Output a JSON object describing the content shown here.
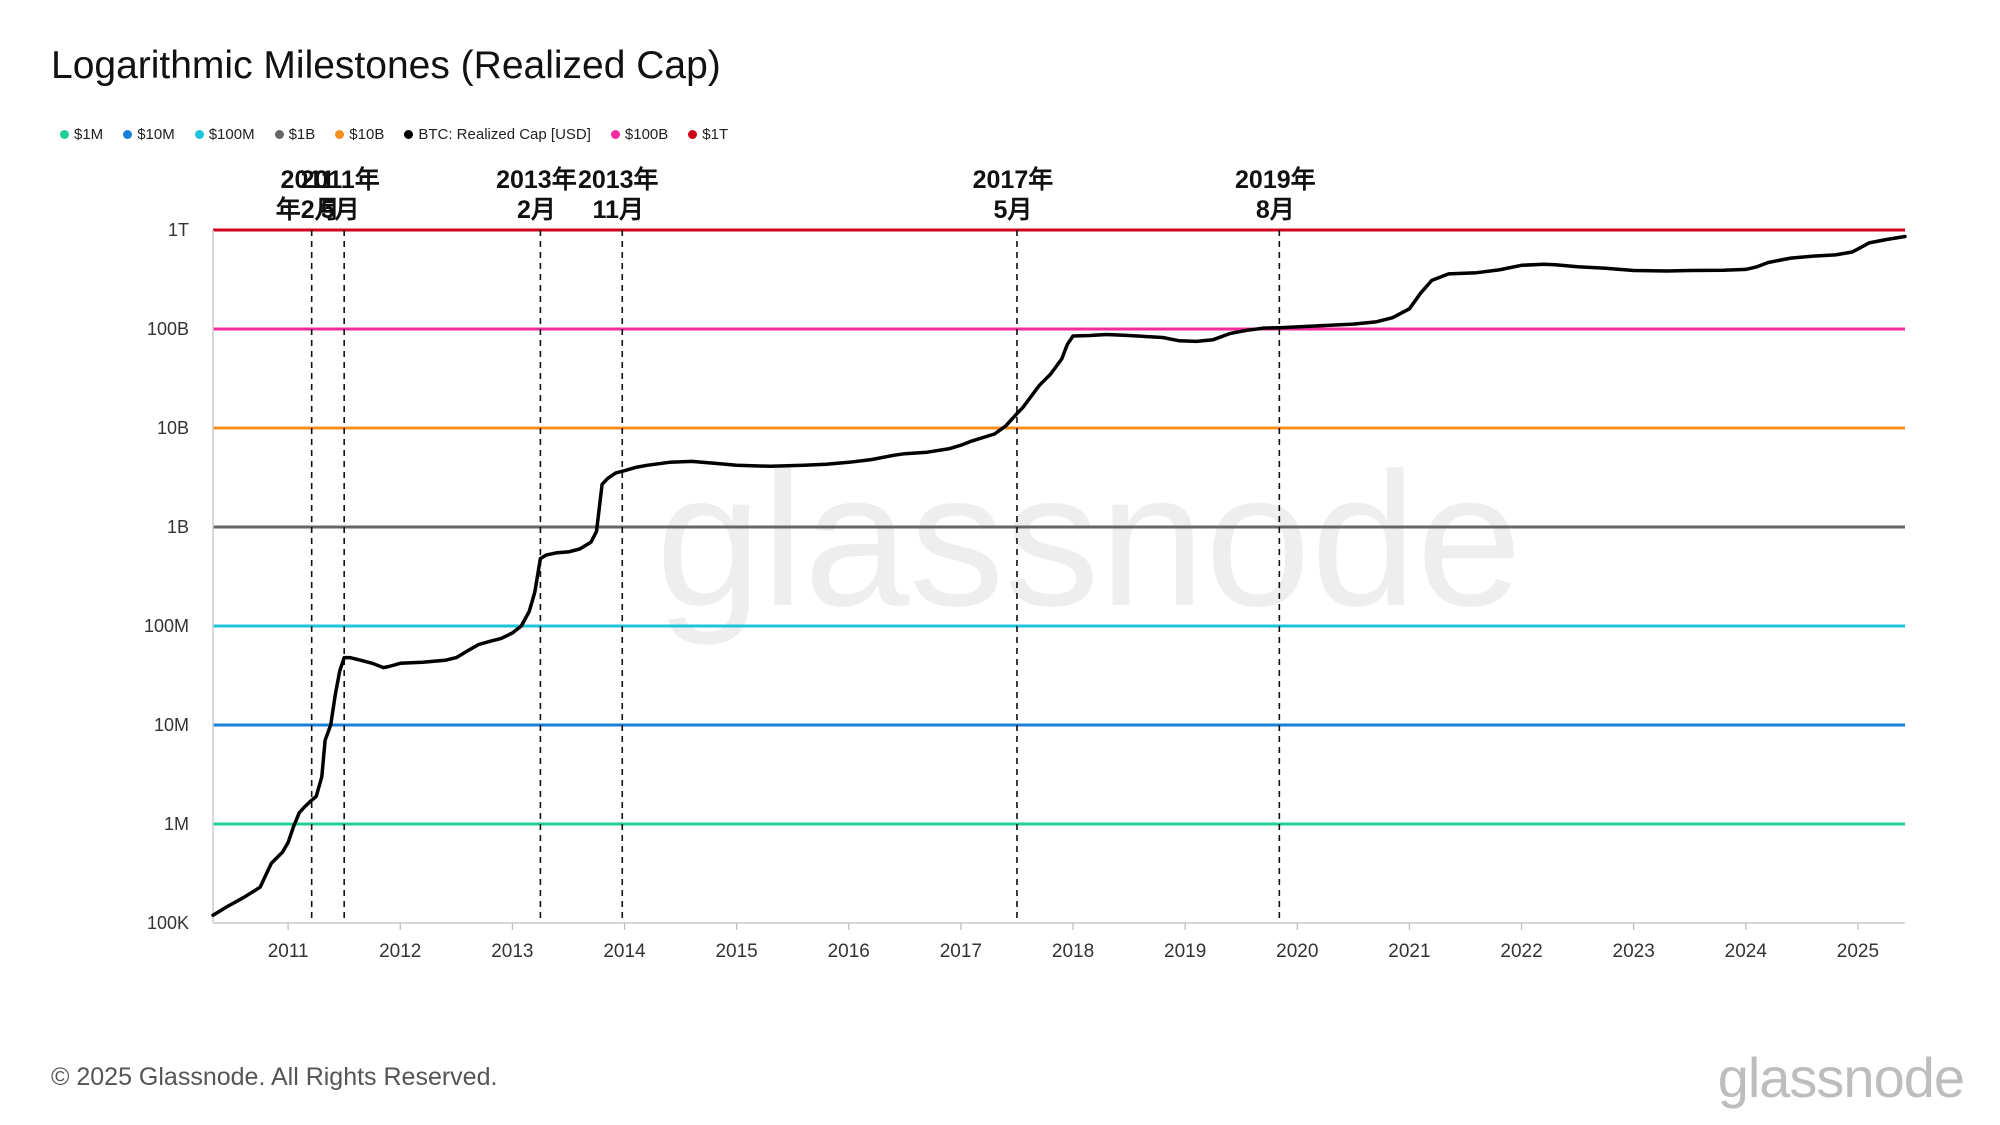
{
  "title": "Logarithmic Milestones (Realized Cap)",
  "footer": "© 2025 Glassnode. All Rights Reserved.",
  "watermark": "glassnode",
  "legend": [
    {
      "label": "$1M",
      "color": "#1fcf99"
    },
    {
      "label": "$10M",
      "color": "#1a7fd9"
    },
    {
      "label": "$100M",
      "color": "#1cc4dc"
    },
    {
      "label": "$1B",
      "color": "#666666"
    },
    {
      "label": "$10B",
      "color": "#f5901e"
    },
    {
      "label": "BTC: Realized Cap [USD]",
      "color": "#000000"
    },
    {
      "label": "$100B",
      "color": "#f52a9e"
    },
    {
      "label": "$1T",
      "color": "#d0021b"
    }
  ],
  "chart_data": {
    "type": "line",
    "title": "Logarithmic Milestones (Realized Cap)",
    "y_scale": "log",
    "ylim": [
      100000,
      1000000000000
    ],
    "xlim": [
      2010.33,
      2025.42
    ],
    "grid": false,
    "legend_position": "top-left",
    "y_ticks": [
      {
        "value": 100000,
        "label": "100K"
      },
      {
        "value": 1000000,
        "label": "1M"
      },
      {
        "value": 10000000,
        "label": "10M"
      },
      {
        "value": 100000000,
        "label": "100M"
      },
      {
        "value": 1000000000,
        "label": "1B"
      },
      {
        "value": 10000000000,
        "label": "10B"
      },
      {
        "value": 100000000000,
        "label": "100B"
      },
      {
        "value": 1000000000000,
        "label": "1T"
      }
    ],
    "x_ticks": [
      "2011",
      "2012",
      "2013",
      "2014",
      "2015",
      "2016",
      "2017",
      "2018",
      "2019",
      "2020",
      "2021",
      "2022",
      "2023",
      "2024",
      "2025"
    ],
    "thresholds": [
      {
        "name": "$1M",
        "value": 1000000,
        "color": "#1fcf99"
      },
      {
        "name": "$10M",
        "value": 10000000,
        "color": "#1a7fd9"
      },
      {
        "name": "$100M",
        "value": 100000000,
        "color": "#1cc4dc"
      },
      {
        "name": "$1B",
        "value": 1000000000,
        "color": "#666666"
      },
      {
        "name": "$10B",
        "value": 10000000000,
        "color": "#f5901e"
      },
      {
        "name": "$100B",
        "value": 100000000000,
        "color": "#f52a9e"
      },
      {
        "name": "$1T",
        "value": 1000000000000,
        "color": "#d0021b"
      }
    ],
    "annotations": [
      {
        "x": 2011.21,
        "line1": "2011",
        "line2": "年2月"
      },
      {
        "x": 2011.5,
        "line1": "2011年",
        "line2": "5月"
      },
      {
        "x": 2013.25,
        "line1": "2013年",
        "line2": "2月"
      },
      {
        "x": 2013.98,
        "line1": "2013年",
        "line2": "11月"
      },
      {
        "x": 2017.5,
        "line1": "2017年",
        "line2": "5月"
      },
      {
        "x": 2019.84,
        "line1": "2019年",
        "line2": "8月"
      }
    ],
    "series": [
      {
        "name": "BTC: Realized Cap [USD]",
        "color": "#000000",
        "x": [
          2010.33,
          2010.45,
          2010.6,
          2010.75,
          2010.85,
          2010.95,
          2011.0,
          2011.05,
          2011.1,
          2011.15,
          2011.2,
          2011.25,
          2011.3,
          2011.33,
          2011.38,
          2011.42,
          2011.46,
          2011.5,
          2011.55,
          2011.65,
          2011.75,
          2011.85,
          2011.9,
          2012.0,
          2012.2,
          2012.4,
          2012.5,
          2012.6,
          2012.7,
          2012.8,
          2012.9,
          2013.0,
          2013.08,
          2013.15,
          2013.2,
          2013.25,
          2013.3,
          2013.4,
          2013.5,
          2013.6,
          2013.7,
          2013.75,
          2013.8,
          2013.85,
          2013.92,
          2014.0,
          2014.1,
          2014.2,
          2014.4,
          2014.6,
          2014.8,
          2015.0,
          2015.3,
          2015.6,
          2015.8,
          2016.0,
          2016.2,
          2016.4,
          2016.5,
          2016.7,
          2016.9,
          2017.0,
          2017.1,
          2017.3,
          2017.4,
          2017.5,
          2017.55,
          2017.7,
          2017.8,
          2017.9,
          2017.95,
          2018.0,
          2018.15,
          2018.3,
          2018.5,
          2018.8,
          2018.95,
          2019.1,
          2019.25,
          2019.4,
          2019.55,
          2019.7,
          2019.84,
          2020.0,
          2020.2,
          2020.5,
          2020.7,
          2020.85,
          2021.0,
          2021.1,
          2021.2,
          2021.35,
          2021.6,
          2021.8,
          2022.0,
          2022.2,
          2022.3,
          2022.5,
          2022.75,
          2023.0,
          2023.3,
          2023.5,
          2023.8,
          2024.0,
          2024.1,
          2024.2,
          2024.4,
          2024.6,
          2024.8,
          2024.95,
          2025.1,
          2025.25,
          2025.42
        ],
        "y": [
          120000,
          145000,
          180000,
          230000,
          400000,
          520000,
          650000,
          950000,
          1300000,
          1500000,
          1700000,
          1900000,
          3000000,
          7000000,
          10000000,
          20000000,
          35000000,
          48000000,
          48000000,
          45000000,
          42000000,
          38000000,
          39000000,
          42000000,
          43000000,
          45000000,
          48000000,
          56000000,
          65000000,
          70000000,
          75000000,
          85000000,
          100000000,
          140000000,
          220000000,
          480000000,
          520000000,
          550000000,
          560000000,
          600000000,
          700000000,
          900000000,
          2700000000,
          3100000000,
          3500000000,
          3700000000,
          4000000000,
          4200000000,
          4500000000,
          4600000000,
          4400000000,
          4200000000,
          4100000000,
          4200000000,
          4300000000,
          4500000000,
          4800000000,
          5300000000,
          5500000000,
          5700000000,
          6200000000,
          6700000000,
          7400000000,
          8700000000,
          10500000000,
          14000000000,
          16000000000,
          27000000000,
          35000000000,
          50000000000,
          70000000000,
          85000000000,
          86000000000,
          88000000000,
          86000000000,
          82000000000,
          76000000000,
          75000000000,
          78000000000,
          90000000000,
          97000000000,
          102000000000,
          103000000000,
          105000000000,
          108000000000,
          112000000000,
          118000000000,
          130000000000,
          160000000000,
          230000000000,
          310000000000,
          360000000000,
          370000000000,
          395000000000,
          440000000000,
          450000000000,
          445000000000,
          425000000000,
          410000000000,
          390000000000,
          385000000000,
          390000000000,
          393000000000,
          400000000000,
          425000000000,
          470000000000,
          520000000000,
          545000000000,
          560000000000,
          600000000000,
          740000000000,
          800000000000,
          860000000000
        ]
      }
    ]
  }
}
